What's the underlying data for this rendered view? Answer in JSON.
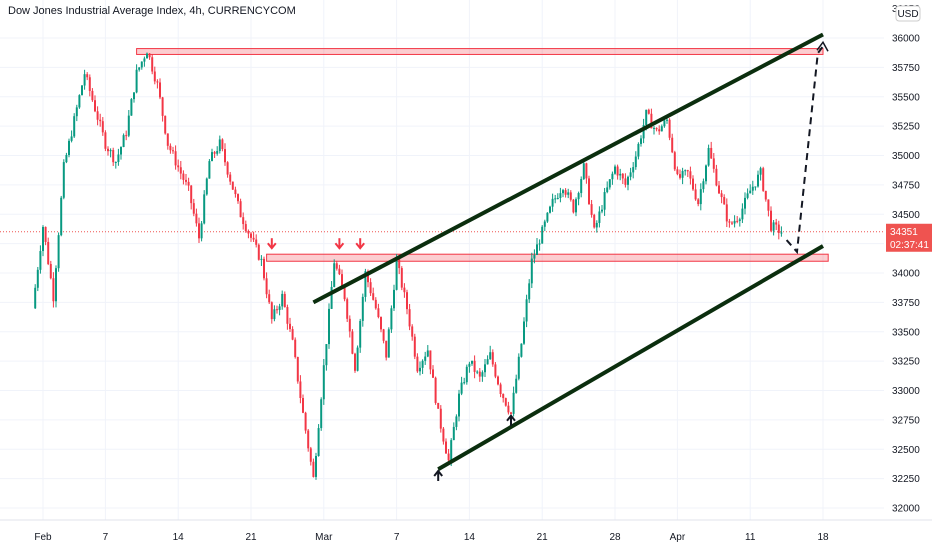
{
  "chart_data": {
    "type": "candlestick",
    "title": "Dow Jones Industrial Average Index, 4h, CURRENCYCOM",
    "currency": "USD",
    "x_ticks": [
      "Feb",
      "7",
      "14",
      "21",
      "Mar",
      "7",
      "14",
      "21",
      "28",
      "Apr",
      "11",
      "18"
    ],
    "y_ticks": [
      "32000",
      "32250",
      "32500",
      "32750",
      "33000",
      "33250",
      "33500",
      "33750",
      "34000",
      "34250",
      "34500",
      "34750",
      "35000",
      "35250",
      "35500",
      "35750",
      "36000"
    ],
    "ylim": [
      32000,
      36000
    ],
    "last_price": "34351",
    "countdown": "02:37:41",
    "price_path": [
      [
        -1,
        33700
      ],
      [
        0,
        34400
      ],
      [
        1,
        33800
      ],
      [
        2,
        34900
      ],
      [
        3,
        35300
      ],
      [
        4,
        35700
      ],
      [
        5,
        35400
      ],
      [
        6,
        35100
      ],
      [
        7,
        34950
      ],
      [
        8,
        35200
      ],
      [
        9,
        35700
      ],
      [
        10,
        35900
      ],
      [
        11,
        35600
      ],
      [
        12,
        35100
      ],
      [
        13,
        34900
      ],
      [
        14,
        34700
      ],
      [
        15,
        34300
      ],
      [
        16,
        34950
      ],
      [
        17,
        35100
      ],
      [
        18,
        34800
      ],
      [
        19,
        34500
      ],
      [
        20,
        34300
      ],
      [
        21,
        34100
      ],
      [
        22,
        33600
      ],
      [
        23,
        33800
      ],
      [
        24,
        33400
      ],
      [
        25,
        32800
      ],
      [
        26,
        32250
      ],
      [
        27,
        33200
      ],
      [
        28,
        34100
      ],
      [
        29,
        33800
      ],
      [
        30,
        33200
      ],
      [
        31,
        34000
      ],
      [
        32,
        33700
      ],
      [
        33,
        33300
      ],
      [
        34,
        34100
      ],
      [
        35,
        33700
      ],
      [
        36,
        33200
      ],
      [
        37,
        33350
      ],
      [
        38,
        32800
      ],
      [
        39,
        32400
      ],
      [
        40,
        32950
      ],
      [
        41,
        33250
      ],
      [
        42,
        33100
      ],
      [
        43,
        33300
      ],
      [
        44,
        33000
      ],
      [
        45,
        32800
      ],
      [
        46,
        33400
      ],
      [
        47,
        34100
      ],
      [
        48,
        34350
      ],
      [
        49,
        34600
      ],
      [
        50,
        34750
      ],
      [
        51,
        34550
      ],
      [
        52,
        34900
      ],
      [
        53,
        34350
      ],
      [
        54,
        34650
      ],
      [
        55,
        34900
      ],
      [
        56,
        34750
      ],
      [
        57,
        35000
      ],
      [
        58,
        35350
      ],
      [
        59,
        35200
      ],
      [
        60,
        35300
      ],
      [
        61,
        34800
      ],
      [
        62,
        34850
      ],
      [
        63,
        34600
      ],
      [
        64,
        35050
      ],
      [
        65,
        34700
      ],
      [
        66,
        34400
      ],
      [
        67,
        34500
      ],
      [
        68,
        34700
      ],
      [
        69,
        34850
      ],
      [
        70,
        34400
      ],
      [
        71,
        34351
      ]
    ],
    "annotations": {
      "resistance_zone_top": [
        35860,
        35910
      ],
      "support_zone": [
        34100,
        34160
      ],
      "channel_upper": [
        [
          26,
          33750
        ],
        [
          75,
          36030
        ]
      ],
      "channel_lower": [
        [
          38,
          32330
        ],
        [
          75,
          34230
        ]
      ],
      "projection_path": [
        [
          71.5,
          34280
        ],
        [
          72.5,
          34180
        ],
        [
          74.5,
          35870
        ],
        [
          75,
          35930
        ]
      ],
      "down_arrows_at_x": [
        22,
        28.5,
        30.5
      ],
      "up_arrows_at": [
        [
          38,
          32230
        ],
        [
          45,
          32700
        ]
      ]
    }
  }
}
